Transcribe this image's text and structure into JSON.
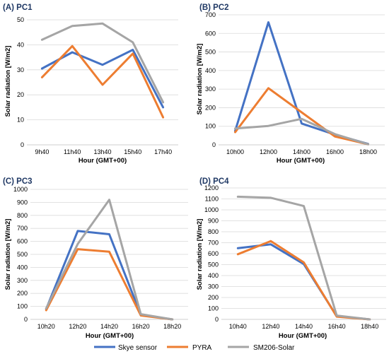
{
  "legend": [
    {
      "name": "Skye sensor",
      "color": "#4472C4"
    },
    {
      "name": "PYRA",
      "color": "#ED7D31"
    },
    {
      "name": "SM206-Solar",
      "color": "#A5A5A5"
    }
  ],
  "chart_data": [
    {
      "type": "line",
      "title": "(A) PC1",
      "xlabel": "Hour (GMT+00)",
      "ylabel": "Solar radiation  [W/m2]",
      "categories": [
        "9h40",
        "11h40",
        "13h40",
        "15h40",
        "17h40"
      ],
      "ylim": [
        0,
        50
      ],
      "yticks": [
        0,
        10,
        20,
        30,
        40,
        50
      ],
      "grid": true,
      "series": [
        {
          "name": "Skye sensor",
          "values": [
            30.5,
            37,
            32,
            38,
            15
          ]
        },
        {
          "name": "PYRA",
          "values": [
            27,
            39.5,
            24,
            36.5,
            11
          ]
        },
        {
          "name": "SM206-Solar",
          "values": [
            42,
            47.5,
            48.5,
            41,
            17
          ]
        }
      ]
    },
    {
      "type": "line",
      "title": "(B) PC2",
      "xlabel": "Hour (GMT+00)",
      "ylabel": "Solar radiation  [W/m2]",
      "categories": [
        "10h00",
        "12h00",
        "14h00",
        "16h00",
        "18h00"
      ],
      "ylim": [
        0,
        700
      ],
      "yticks": [
        0,
        100,
        200,
        300,
        400,
        500,
        600,
        700
      ],
      "grid": true,
      "series": [
        {
          "name": "Skye sensor",
          "values": [
            75,
            660,
            115,
            55,
            5
          ]
        },
        {
          "name": "PYRA",
          "values": [
            68,
            305,
            175,
            45,
            3
          ]
        },
        {
          "name": "SM206-Solar",
          "values": [
            88,
            102,
            140,
            58,
            3
          ]
        }
      ]
    },
    {
      "type": "line",
      "title": "(C) PC3",
      "xlabel": "Hour (GMT+00)",
      "ylabel": "Solar radiation  [W/m2]",
      "categories": [
        "10h20",
        "12h20",
        "14h20",
        "16h20",
        "18h20"
      ],
      "ylim": [
        0,
        1000
      ],
      "yticks": [
        0,
        100,
        200,
        300,
        400,
        500,
        600,
        700,
        800,
        900,
        1000
      ],
      "grid": true,
      "series": [
        {
          "name": "Skye sensor",
          "values": [
            80,
            680,
            655,
            35,
            0
          ]
        },
        {
          "name": "PYRA",
          "values": [
            70,
            540,
            520,
            30,
            0
          ]
        },
        {
          "name": "SM206-Solar",
          "values": [
            85,
            580,
            920,
            40,
            0
          ]
        }
      ]
    },
    {
      "type": "line",
      "title": "(D) PC4",
      "xlabel": "Hour (GMT+00)",
      "ylabel": "Solar radiation  [W/m2]",
      "categories": [
        "10h40",
        "12h40",
        "14h40",
        "16h40",
        "18h40"
      ],
      "ylim": [
        0,
        1200
      ],
      "yticks": [
        0,
        100,
        200,
        300,
        400,
        500,
        600,
        700,
        800,
        900,
        1000,
        1100,
        1200
      ],
      "grid": true,
      "series": [
        {
          "name": "Skye sensor",
          "values": [
            650,
            685,
            505,
            30,
            0
          ]
        },
        {
          "name": "PYRA",
          "values": [
            595,
            715,
            520,
            25,
            0
          ]
        },
        {
          "name": "SM206-Solar",
          "values": [
            1120,
            1110,
            1035,
            35,
            0
          ]
        }
      ]
    }
  ]
}
